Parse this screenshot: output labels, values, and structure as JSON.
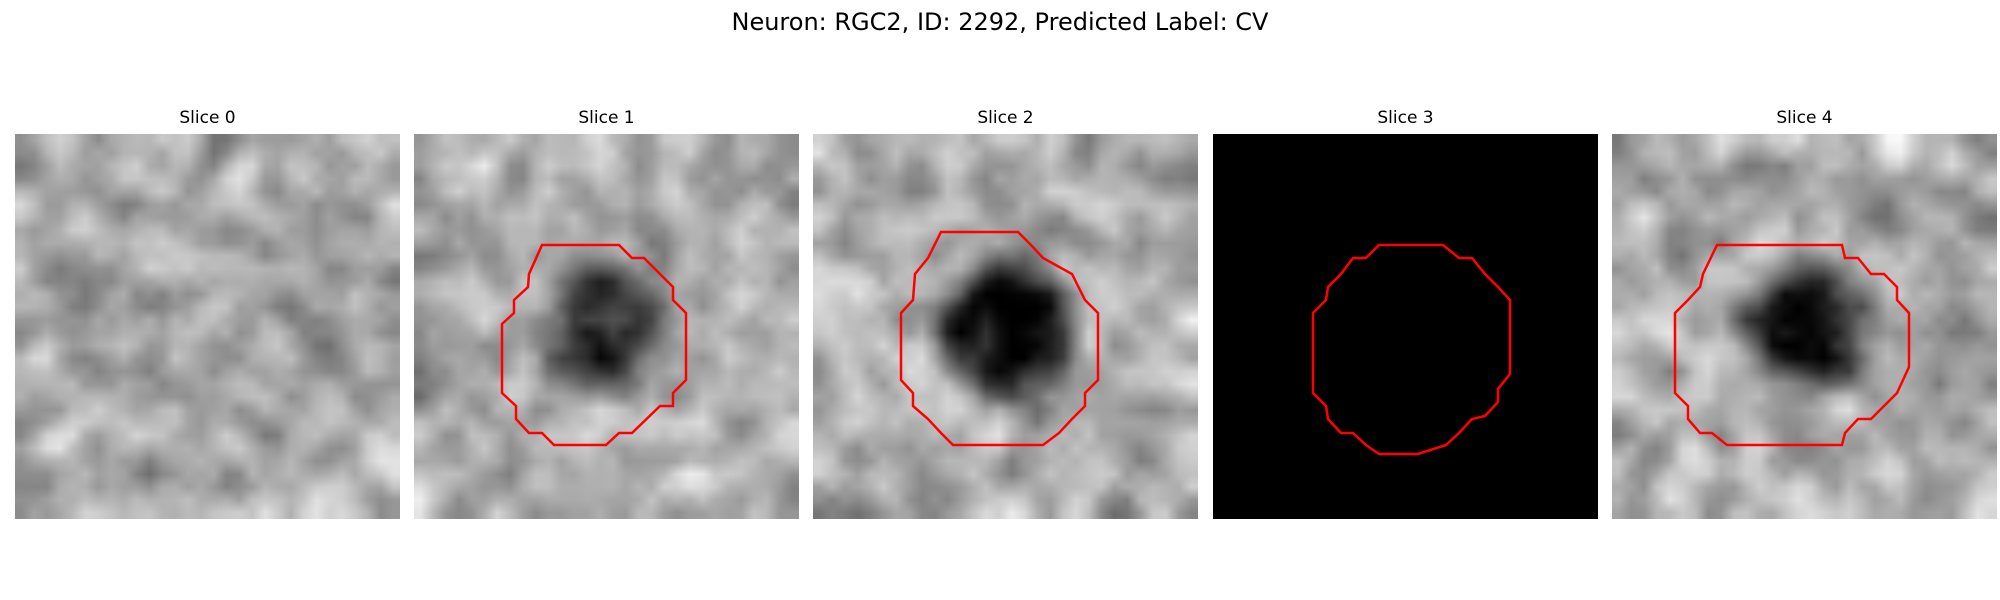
{
  "figure": {
    "title": "Neuron: RGC2, ID: 2292, Predicted Label: CV"
  },
  "panels": [
    {
      "title": "Slice 0",
      "image_type": "grayscale-noise",
      "has_roi": false,
      "blank": false,
      "seed": 11,
      "dark_blob": 0.0,
      "roi_color": "#ff0000"
    },
    {
      "title": "Slice 1",
      "image_type": "grayscale-noise",
      "has_roi": true,
      "blank": false,
      "seed": 23,
      "dark_blob": 0.45,
      "roi_color": "#ff0000"
    },
    {
      "title": "Slice 2",
      "image_type": "grayscale-noise",
      "has_roi": true,
      "blank": false,
      "seed": 37,
      "dark_blob": 0.7,
      "roi_color": "#ff0000"
    },
    {
      "title": "Slice 3",
      "image_type": "blank-black",
      "has_roi": true,
      "blank": true,
      "seed": 41,
      "dark_blob": 0.0,
      "roi_color": "#ff0000"
    },
    {
      "title": "Slice 4",
      "image_type": "grayscale-noise",
      "has_roi": true,
      "blank": false,
      "seed": 53,
      "dark_blob": 0.55,
      "roi_color": "#ff0000"
    }
  ]
}
